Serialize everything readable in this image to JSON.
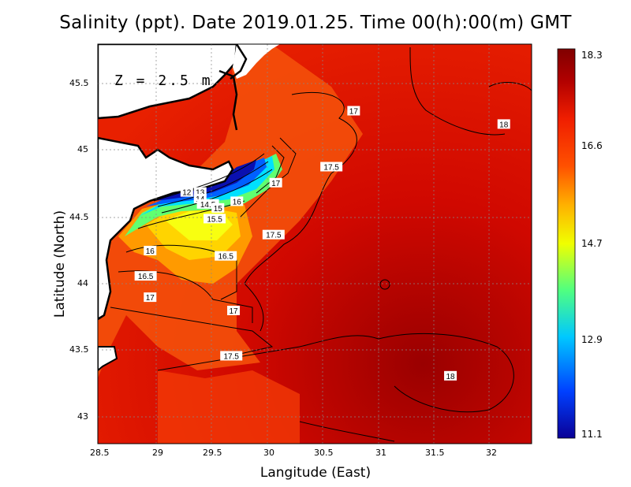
{
  "title": "Salinity (ppt). Date 2019.01.25. Time 00(h):00(m) GMT",
  "depth_label": "Z = 2.5 m",
  "xlabel": "Langitude (East)",
  "ylabel": "Latitude (North)",
  "x_ticks": [
    "28.5",
    "29",
    "29.5",
    "30",
    "30.5",
    "31",
    "31.5",
    "32"
  ],
  "y_ticks": [
    "43",
    "43.5",
    "44",
    "44.5",
    "45",
    "45.5"
  ],
  "colorbar": {
    "ticks": [
      "18.3",
      "16.6",
      "14.7",
      "12.9",
      "11.1"
    ],
    "colors": [
      "#0a0096",
      "#0040ff",
      "#00c8ff",
      "#50ff80",
      "#f0ff00",
      "#ffb000",
      "#ff5000",
      "#f01e00",
      "#b00000",
      "#800000"
    ]
  },
  "contour_labels": [
    {
      "text": "17",
      "lon": 30.8,
      "lat": 45.3
    },
    {
      "text": "18",
      "lon": 32.15,
      "lat": 45.2
    },
    {
      "text": "17.5",
      "lon": 30.6,
      "lat": 44.88
    },
    {
      "text": "17",
      "lon": 30.1,
      "lat": 44.76
    },
    {
      "text": "12",
      "lon": 29.3,
      "lat": 44.69
    },
    {
      "text": "13",
      "lon": 29.42,
      "lat": 44.69
    },
    {
      "text": "14",
      "lon": 29.42,
      "lat": 44.64
    },
    {
      "text": "14.5",
      "lon": 29.49,
      "lat": 44.6
    },
    {
      "text": "15",
      "lon": 29.58,
      "lat": 44.57
    },
    {
      "text": "16",
      "lon": 29.75,
      "lat": 44.62
    },
    {
      "text": "15.5",
      "lon": 29.55,
      "lat": 44.49
    },
    {
      "text": "17.5",
      "lon": 30.08,
      "lat": 44.37
    },
    {
      "text": "16",
      "lon": 28.97,
      "lat": 44.25
    },
    {
      "text": "16.5",
      "lon": 29.65,
      "lat": 44.21
    },
    {
      "text": "16.5",
      "lon": 28.93,
      "lat": 44.06
    },
    {
      "text": "17",
      "lon": 28.97,
      "lat": 43.9
    },
    {
      "text": "17",
      "lon": 29.72,
      "lat": 43.8
    },
    {
      "text": "17.5",
      "lon": 29.7,
      "lat": 43.46
    },
    {
      "text": "18",
      "lon": 31.67,
      "lat": 43.31
    }
  ]
}
